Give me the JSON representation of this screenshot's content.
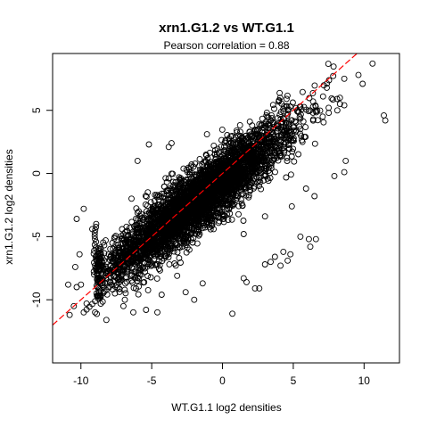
{
  "chart_data": {
    "type": "scatter",
    "title": "xrn1.G1.2 vs WT.G1.1",
    "subtitle": "Pearson correlation =  0.88",
    "xlabel": "WT.G1.1 log2 densities",
    "ylabel": "xrn1.G1.2 log2 densities",
    "xlim": [
      -12,
      12.5
    ],
    "ylim": [
      -15,
      9.5
    ],
    "x_ticks": [
      -10,
      -5,
      0,
      5,
      10
    ],
    "y_ticks": [
      -10,
      -5,
      0,
      5
    ],
    "x_tick_labels": [
      "-10",
      "-5",
      "0",
      "5",
      "10"
    ],
    "y_tick_labels": [
      "-10",
      "-5",
      "0",
      "5"
    ],
    "grid": false,
    "marker": "open-circle",
    "point_color": "#000000",
    "reference_line": {
      "type": "y=x",
      "color": "#ff0000",
      "style": "dashed"
    },
    "bulk_cloud": {
      "description": "dense diagonal band of several thousand points",
      "x_range": [
        -9,
        9
      ],
      "relationship": "y ≈ 0.85·x − 0.6 (approx)",
      "spread_y": 2.0
    },
    "outlier_points": [
      {
        "x": 10.6,
        "y": 8.7
      },
      {
        "x": 11.4,
        "y": 4.6
      },
      {
        "x": 11.5,
        "y": 4.2
      },
      {
        "x": 9.9,
        "y": 7.1
      },
      {
        "x": 9.6,
        "y": 7.8
      },
      {
        "x": 8.3,
        "y": 5.5
      },
      {
        "x": 5.5,
        "y": -5.0
      },
      {
        "x": 6.1,
        "y": -5.2
      },
      {
        "x": 6.6,
        "y": -5.2
      },
      {
        "x": 6.2,
        "y": -5.8
      },
      {
        "x": 4.3,
        "y": -6.2
      },
      {
        "x": 4.6,
        "y": -6.9
      },
      {
        "x": 4.1,
        "y": -7.3
      },
      {
        "x": 3.4,
        "y": -7.0
      },
      {
        "x": 3.0,
        "y": -7.2
      },
      {
        "x": 3.7,
        "y": -6.6
      },
      {
        "x": 4.8,
        "y": -6.4
      },
      {
        "x": 1.5,
        "y": -8.3
      },
      {
        "x": 1.7,
        "y": -8.6
      },
      {
        "x": 2.3,
        "y": -9.1
      },
      {
        "x": 2.6,
        "y": -9.1
      },
      {
        "x": 0.7,
        "y": -11.1
      },
      {
        "x": -2.0,
        "y": -10.0
      },
      {
        "x": -10.5,
        "y": -10.5
      },
      {
        "x": -10.8,
        "y": -11.2
      },
      {
        "x": -10.3,
        "y": -9.0
      },
      {
        "x": -9.6,
        "y": -10.3
      },
      {
        "x": -9.0,
        "y": -11.0
      },
      {
        "x": -8.2,
        "y": -11.6
      },
      {
        "x": -10.9,
        "y": -8.8
      },
      {
        "x": -10.0,
        "y": -8.8
      },
      {
        "x": -10.4,
        "y": -7.4
      },
      {
        "x": -10.1,
        "y": -6.4
      },
      {
        "x": -10.3,
        "y": -3.6
      },
      {
        "x": -9.8,
        "y": -2.8
      },
      {
        "x": -9.2,
        "y": -4.4
      },
      {
        "x": -8.6,
        "y": -6.0
      },
      {
        "x": -8.7,
        "y": -7.0
      },
      {
        "x": -8.4,
        "y": -8.2
      },
      {
        "x": -8.9,
        "y": -9.5
      },
      {
        "x": -7.0,
        "y": -10.5
      },
      {
        "x": -6.3,
        "y": -11.0
      },
      {
        "x": -5.4,
        "y": -10.8
      },
      {
        "x": -4.6,
        "y": -11.0
      },
      {
        "x": -6.9,
        "y": -10.0
      },
      {
        "x": -7.6,
        "y": -9.5
      },
      {
        "x": -6.0,
        "y": 1.0
      },
      {
        "x": -5.2,
        "y": 2.3
      },
      {
        "x": -3.8,
        "y": 2.1
      },
      {
        "x": -3.6,
        "y": 2.4
      },
      {
        "x": -1.1,
        "y": 3.1
      },
      {
        "x": 1.0,
        "y": 3.4
      },
      {
        "x": 2.6,
        "y": 3.9
      },
      {
        "x": 3.1,
        "y": 4.6
      },
      {
        "x": 4.0,
        "y": 5.8
      },
      {
        "x": 4.8,
        "y": 5.3
      },
      {
        "x": 5.5,
        "y": 5.3
      },
      {
        "x": 6.4,
        "y": 5.7
      },
      {
        "x": 7.1,
        "y": 6.1
      },
      {
        "x": 7.5,
        "y": 5.2
      },
      {
        "x": 8.6,
        "y": 5.4
      },
      {
        "x": 8.1,
        "y": 5.9
      },
      {
        "x": 1.5,
        "y": -4.8
      },
      {
        "x": 3.0,
        "y": -3.4
      },
      {
        "x": 4.9,
        "y": -2.6
      },
      {
        "x": 6.5,
        "y": -1.8
      },
      {
        "x": 8.7,
        "y": 1.0
      },
      {
        "x": 8.6,
        "y": 0.1
      },
      {
        "x": 7.9,
        "y": -0.2
      },
      {
        "x": 5.9,
        "y": -1.2
      },
      {
        "x": -1.4,
        "y": -8.7
      },
      {
        "x": -2.6,
        "y": -9.4
      },
      {
        "x": -4.3,
        "y": -9.6
      },
      {
        "x": -3.2,
        "y": -8.1
      }
    ],
    "lower_streak": {
      "description": "near-linear chain of points along the lower-left edge",
      "from": {
        "x": -9.8,
        "y": -11.0
      },
      "to": {
        "x": -8.0,
        "y": -9.0
      },
      "count": 10
    },
    "left_edge_column": {
      "description": "vertical column of points at the left cutoff of the bulk",
      "x": -9.0,
      "y_range": [
        -8.0,
        -4.0
      ],
      "count": 18
    }
  }
}
